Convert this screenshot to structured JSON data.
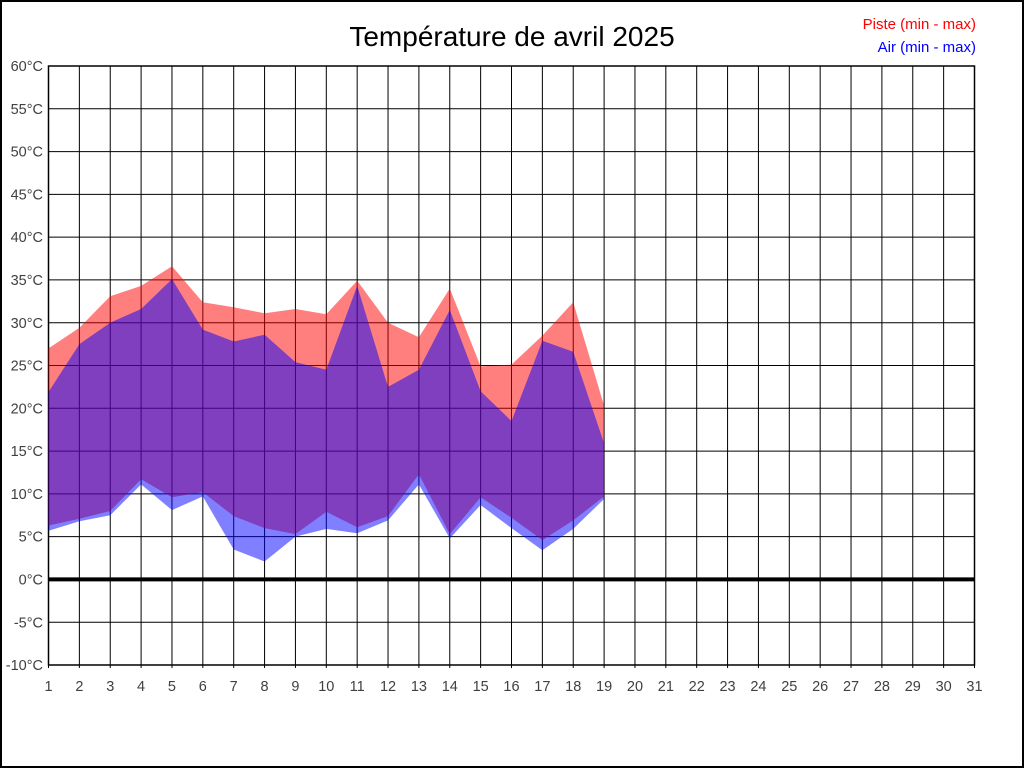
{
  "title": "Température de avril 2025",
  "legend": {
    "items": [
      {
        "label": "Piste (min - max)",
        "color": "#ff0000"
      },
      {
        "label": "Air (min - max)",
        "color": "#0000ff"
      }
    ]
  },
  "chart_data": {
    "type": "area",
    "title": "Température de avril 2025",
    "grid": true,
    "legend_position": "top-right",
    "x": [
      1,
      2,
      3,
      4,
      5,
      6,
      7,
      8,
      9,
      10,
      11,
      12,
      13,
      14,
      15,
      16,
      17,
      18,
      19
    ],
    "x_axis": {
      "min": 1,
      "max": 31,
      "tick_step": 1,
      "tick_labels": [
        "1",
        "2",
        "3",
        "4",
        "5",
        "6",
        "7",
        "8",
        "9",
        "10",
        "11",
        "12",
        "13",
        "14",
        "15",
        "16",
        "17",
        "18",
        "19",
        "20",
        "21",
        "22",
        "23",
        "24",
        "25",
        "26",
        "27",
        "28",
        "29",
        "30",
        "31"
      ]
    },
    "y_axis": {
      "min": -10,
      "max": 60,
      "tick_step": 5,
      "unit": "°C",
      "zero_line_emphasized": true,
      "tick_labels": [
        "60°C",
        "55°C",
        "50°C",
        "45°C",
        "40°C",
        "35°C",
        "30°C",
        "25°C",
        "20°C",
        "15°C",
        "10°C",
        "5°C",
        "0°C",
        "-5°C",
        "-10°C"
      ]
    },
    "series": [
      {
        "name": "Piste (min - max)",
        "color": "#ff0000",
        "fill_opacity": 0.5,
        "min": [
          6.3,
          7.1,
          8.0,
          11.7,
          9.6,
          10.2,
          7.4,
          6.0,
          5.3,
          7.9,
          6.1,
          7.4,
          12.3,
          5.3,
          9.6,
          7.2,
          4.6,
          6.9,
          9.7
        ],
        "max": [
          27.0,
          29.4,
          33.1,
          34.3,
          36.6,
          32.4,
          31.8,
          31.1,
          31.6,
          31.0,
          34.9,
          30.0,
          28.3,
          34.0,
          24.9,
          25.1,
          28.5,
          32.4,
          20.3
        ]
      },
      {
        "name": "Air (min - max)",
        "color": "#0000ff",
        "fill_opacity": 0.5,
        "min": [
          5.7,
          6.8,
          7.5,
          11.1,
          8.1,
          9.7,
          3.5,
          2.1,
          5.0,
          5.9,
          5.4,
          6.9,
          11.1,
          4.8,
          8.7,
          6.0,
          3.4,
          5.9,
          9.4
        ],
        "max": [
          21.9,
          27.5,
          30.0,
          31.6,
          35.1,
          29.2,
          27.8,
          28.6,
          25.4,
          24.5,
          34.3,
          22.5,
          24.5,
          31.5,
          22.0,
          18.5,
          27.9,
          26.6,
          15.9
        ]
      }
    ]
  }
}
